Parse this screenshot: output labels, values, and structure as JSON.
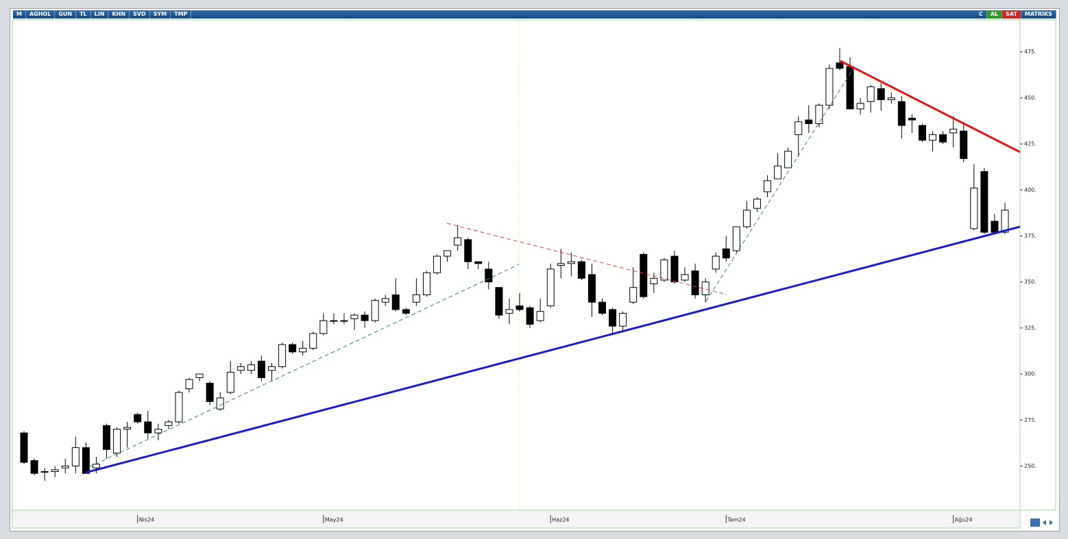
{
  "toolbar": {
    "logo": "M",
    "symbol": "AGHOL",
    "buttons": [
      "GUN",
      "TL",
      "LIN",
      "KHN",
      "SVD",
      "SYM",
      "TMP"
    ],
    "right": [
      "C",
      "AL",
      "SAT",
      "MATRIKS"
    ]
  },
  "chart_data": {
    "type": "candlestick",
    "categories": [
      null,
      null,
      null,
      null,
      null,
      null,
      null,
      null,
      null,
      null,
      null,
      "Nis24",
      null,
      null,
      null,
      null,
      null,
      null,
      null,
      null,
      null,
      null,
      null,
      null,
      null,
      null,
      null,
      null,
      null,
      "May24",
      null,
      null,
      null,
      null,
      null,
      null,
      null,
      null,
      null,
      null,
      null,
      null,
      null,
      null,
      null,
      null,
      null,
      null,
      null,
      null,
      null,
      "Haz24",
      null,
      null,
      null,
      null,
      null,
      null,
      null,
      null,
      null,
      null,
      null,
      null,
      null,
      null,
      null,
      null,
      "Tem24",
      null,
      null,
      null,
      null,
      null,
      null,
      null,
      null,
      null,
      null,
      null,
      null,
      null,
      null,
      null,
      null,
      null,
      null,
      null,
      null,
      null,
      "Ağu24",
      null,
      null,
      null,
      null,
      null
    ],
    "open": [
      268,
      253,
      247,
      247,
      249,
      250,
      260,
      249,
      272,
      257,
      270,
      278,
      274,
      268,
      272,
      274,
      292,
      298,
      295,
      281,
      290,
      302,
      302,
      307,
      302,
      304,
      316,
      312,
      314,
      322,
      329,
      329,
      330,
      332,
      329,
      339,
      343,
      335,
      339,
      343,
      355,
      364,
      370,
      373,
      361,
      357,
      347,
      333,
      337,
      336,
      329,
      337,
      359,
      360,
      361,
      354,
      339,
      335,
      326,
      339,
      365,
      349,
      351,
      364,
      351,
      356,
      343,
      357,
      368,
      367,
      380,
      390,
      399,
      406,
      412,
      430,
      438,
      436,
      446,
      469,
      467,
      444,
      448,
      455,
      449,
      448,
      439,
      435,
      427,
      430,
      431,
      432,
      379,
      410,
      383,
      377
    ],
    "high": [
      269,
      254,
      249,
      250,
      254,
      266,
      263,
      255,
      273,
      271,
      274,
      279,
      280,
      273,
      275,
      291,
      298,
      300,
      296,
      290,
      307,
      306,
      307,
      310,
      306,
      317,
      317,
      318,
      323,
      333,
      333,
      333,
      333,
      334,
      341,
      343,
      352,
      336,
      352,
      356,
      365,
      367,
      381,
      374,
      361,
      361,
      347,
      341,
      344,
      337,
      341,
      360,
      368,
      366,
      362,
      360,
      341,
      336,
      334,
      358,
      366,
      355,
      363,
      367,
      358,
      360,
      352,
      366,
      375,
      380,
      394,
      396,
      408,
      420,
      423,
      440,
      446,
      447,
      468,
      477,
      472,
      450,
      457,
      458,
      453,
      451,
      441,
      436,
      432,
      432,
      440,
      437,
      414,
      412,
      387,
      393
    ],
    "low": [
      251,
      245,
      242,
      244,
      246,
      246,
      246,
      246,
      254,
      255,
      260,
      273,
      265,
      264,
      270,
      273,
      290,
      296,
      283,
      280,
      289,
      300,
      300,
      296,
      296,
      303,
      311,
      310,
      313,
      321,
      327,
      327,
      324,
      325,
      328,
      337,
      334,
      332,
      337,
      342,
      354,
      361,
      367,
      357,
      357,
      346,
      330,
      327,
      334,
      325,
      328,
      336,
      352,
      353,
      351,
      331,
      332,
      322,
      323,
      338,
      341,
      344,
      350,
      349,
      350,
      341,
      339,
      355,
      361,
      366,
      379,
      388,
      396,
      406,
      412,
      418,
      431,
      434,
      444,
      465,
      444,
      441,
      442,
      443,
      447,
      428,
      431,
      426,
      421,
      425,
      423,
      415,
      378,
      376,
      376,
      376
    ],
    "close": [
      252,
      246,
      247,
      248,
      250,
      260,
      246,
      251,
      259,
      270,
      271,
      274,
      268,
      270,
      274,
      290,
      297,
      300,
      285,
      287,
      301,
      304,
      305,
      298,
      304,
      316,
      312,
      314,
      322,
      329,
      329,
      329,
      332,
      329,
      340,
      341,
      335,
      333,
      343,
      355,
      364,
      367,
      374,
      361,
      360,
      350,
      332,
      335,
      335,
      327,
      334,
      357,
      360,
      361,
      352,
      339,
      333,
      326,
      333,
      347,
      342,
      352,
      362,
      350,
      354,
      343,
      350,
      364,
      363,
      380,
      389,
      395,
      405,
      413,
      421,
      437,
      436,
      446,
      466,
      466,
      444,
      447,
      456,
      449,
      450,
      435,
      438,
      427,
      430,
      426,
      433,
      417,
      401,
      377,
      377,
      389
    ],
    "up_color": "#ffffff",
    "down_color": "#000000",
    "ylim": [
      226,
      492
    ],
    "yticks": [
      {
        "value": 250,
        "label": "250."
      },
      {
        "value": 275,
        "label": "275."
      },
      {
        "value": 300,
        "label": "300."
      },
      {
        "value": 325,
        "label": "325."
      },
      {
        "value": 350,
        "label": "350."
      },
      {
        "value": 375,
        "label": "375."
      },
      {
        "value": 400,
        "label": "400."
      },
      {
        "value": 425,
        "label": "425."
      },
      {
        "value": 450,
        "label": "450."
      },
      {
        "value": 475,
        "label": "475."
      }
    ]
  }
}
